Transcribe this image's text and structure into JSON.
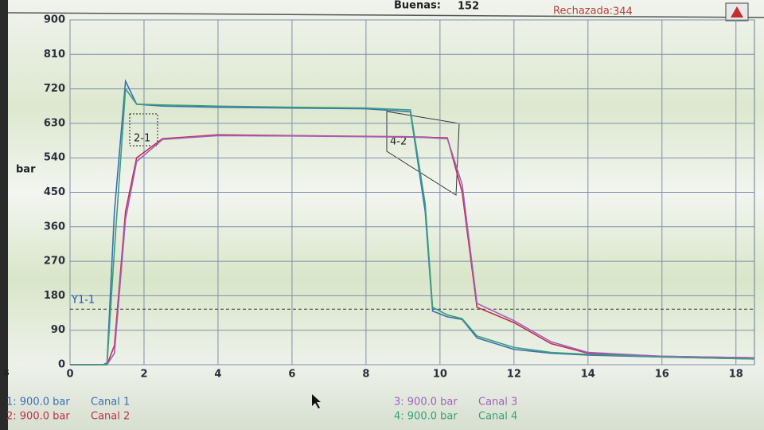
{
  "header": {
    "good_label": "Buenas:",
    "good_value": "152",
    "rejected_label": "Rechazada:",
    "rejected_value": "344"
  },
  "chart_data": {
    "type": "line",
    "ylabel": "bar",
    "xlabel": "s",
    "x": [
      0,
      0.9,
      1.0,
      1.2,
      1.5,
      1.8,
      2.5,
      4,
      6,
      8,
      9.2,
      9.6,
      9.8,
      10.2,
      10.6,
      11,
      12,
      13,
      14,
      16,
      18.5
    ],
    "series": [
      {
        "name": "Canal 1",
        "range_label": "1: 900.0 bar",
        "color": "#3a6fb5",
        "values": [
          0,
          0,
          5,
          400,
          740,
          680,
          675,
          672,
          670,
          668,
          660,
          400,
          140,
          125,
          118,
          70,
          40,
          30,
          25,
          20,
          15
        ]
      },
      {
        "name": "Canal 2",
        "range_label": "2: 900.0 bar",
        "color": "#c0304a",
        "values": [
          0,
          0,
          0,
          50,
          400,
          540,
          590,
          600,
          598,
          596,
          595,
          594,
          593,
          592,
          450,
          150,
          110,
          55,
          30,
          22,
          18
        ]
      },
      {
        "name": "Canal 3",
        "range_label": "3: 900.0 bar",
        "color": "#a060c0",
        "values": [
          0,
          0,
          0,
          30,
          380,
          530,
          588,
          598,
          597,
          595,
          594,
          593,
          592,
          590,
          470,
          160,
          115,
          60,
          32,
          22,
          18
        ]
      },
      {
        "name": "Canal 4",
        "range_label": "4: 900.0 bar",
        "color": "#3aa07a",
        "values": [
          0,
          0,
          0,
          300,
          720,
          680,
          678,
          675,
          672,
          670,
          665,
          420,
          150,
          130,
          120,
          75,
          45,
          32,
          27,
          20,
          15
        ]
      }
    ],
    "xlim": [
      0,
      18.5
    ],
    "ylim": [
      0,
      900
    ],
    "xticks": [
      0,
      2,
      4,
      6,
      8,
      10,
      12,
      14,
      16,
      18
    ],
    "yticks": [
      0,
      90,
      180,
      270,
      360,
      450,
      540,
      630,
      720,
      810,
      900
    ],
    "grid": true,
    "threshold": {
      "label": "Y1-1",
      "value": 145
    },
    "annotations": [
      {
        "label": "2-1"
      },
      {
        "label": "4-2"
      }
    ]
  }
}
